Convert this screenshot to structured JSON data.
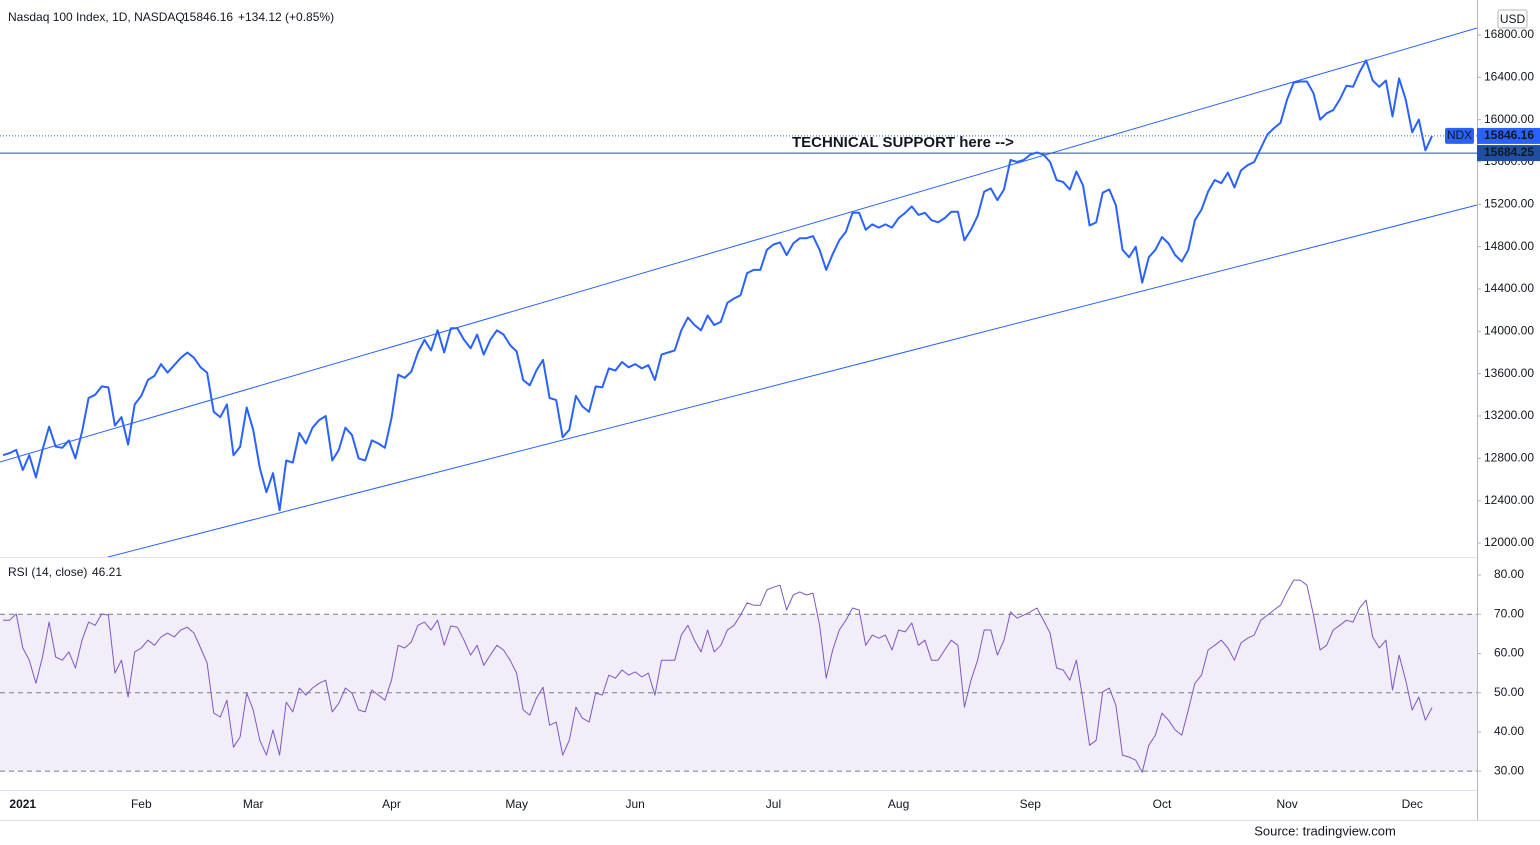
{
  "chart_data": {
    "type": "line",
    "currency": "USD",
    "source": "Source: tradingview.com",
    "annotation": "TECHNICAL SUPPORT here -->",
    "support_level": 15684.25,
    "categories": [
      null,
      null,
      null,
      "2021",
      null,
      null,
      null,
      null,
      null,
      null,
      null,
      null,
      null,
      null,
      null,
      null,
      null,
      null,
      null,
      null,
      null,
      "Feb",
      null,
      null,
      null,
      null,
      null,
      null,
      null,
      null,
      null,
      null,
      null,
      null,
      null,
      null,
      null,
      null,
      "Mar",
      null,
      null,
      null,
      null,
      null,
      null,
      null,
      null,
      null,
      null,
      null,
      null,
      null,
      null,
      null,
      null,
      null,
      null,
      null,
      null,
      "Apr",
      null,
      null,
      null,
      null,
      null,
      null,
      null,
      null,
      null,
      null,
      null,
      null,
      null,
      null,
      null,
      null,
      null,
      null,
      "May",
      null,
      null,
      null,
      null,
      null,
      null,
      null,
      null,
      null,
      null,
      null,
      null,
      null,
      null,
      null,
      null,
      null,
      "Jun",
      null,
      null,
      null,
      null,
      null,
      null,
      null,
      null,
      null,
      null,
      null,
      null,
      null,
      null,
      null,
      null,
      null,
      null,
      null,
      null,
      "Jul",
      null,
      null,
      null,
      null,
      null,
      null,
      null,
      null,
      null,
      null,
      null,
      null,
      null,
      null,
      null,
      null,
      null,
      null,
      "Aug",
      null,
      null,
      null,
      null,
      null,
      null,
      null,
      null,
      null,
      null,
      null,
      null,
      null,
      null,
      null,
      null,
      null,
      null,
      null,
      "Sep",
      null,
      null,
      null,
      null,
      null,
      null,
      null,
      null,
      null,
      null,
      null,
      null,
      null,
      null,
      null,
      null,
      null,
      null,
      null,
      "Oct",
      null,
      null,
      null,
      null,
      null,
      null,
      null,
      null,
      null,
      null,
      null,
      null,
      null,
      null,
      null,
      null,
      null,
      null,
      "Nov",
      null,
      null,
      null,
      null,
      null,
      null,
      null,
      null,
      null,
      null,
      null,
      null,
      null,
      null,
      null,
      null,
      null,
      null,
      "Dec",
      null,
      null,
      null
    ],
    "series": [
      {
        "name": "Nasdaq 100 Index, 1D, NASDAQ",
        "symbol": "NDX",
        "change": "+134.12 (+0.85%)",
        "color": "#2962ff",
        "axis": "y",
        "values": [
          12830,
          12850,
          12880,
          12690,
          12830,
          12620,
          12880,
          13100,
          12910,
          12900,
          12970,
          12800,
          13050,
          13370,
          13400,
          13480,
          13470,
          13110,
          13190,
          12930,
          13310,
          13390,
          13540,
          13580,
          13690,
          13610,
          13680,
          13750,
          13800,
          13750,
          13660,
          13610,
          13240,
          13190,
          13310,
          12830,
          12910,
          13280,
          13070,
          12710,
          12480,
          12660,
          12310,
          12780,
          12760,
          13040,
          12940,
          13090,
          13160,
          13200,
          12780,
          12880,
          13090,
          13020,
          12800,
          12780,
          12970,
          12940,
          12900,
          13180,
          13590,
          13560,
          13620,
          13800,
          13920,
          13820,
          14010,
          13800,
          14030,
          14030,
          13920,
          13840,
          13970,
          13780,
          13920,
          14010,
          13970,
          13870,
          13810,
          13540,
          13490,
          13630,
          13730,
          13370,
          13350,
          13000,
          13070,
          13390,
          13290,
          13240,
          13480,
          13470,
          13650,
          13630,
          13710,
          13660,
          13690,
          13650,
          13680,
          13540,
          13780,
          13800,
          13820,
          14010,
          14130,
          14060,
          14010,
          14150,
          14060,
          14090,
          14270,
          14310,
          14340,
          14550,
          14580,
          14580,
          14770,
          14820,
          14840,
          14720,
          14830,
          14880,
          14880,
          14900,
          14770,
          14580,
          14730,
          14860,
          14940,
          15120,
          15120,
          14960,
          15010,
          14980,
          15010,
          14980,
          15070,
          15120,
          15180,
          15100,
          15120,
          15050,
          15030,
          15070,
          15130,
          15130,
          14860,
          14960,
          15090,
          15320,
          15350,
          15240,
          15340,
          15620,
          15600,
          15620,
          15670,
          15690,
          15670,
          15600,
          15430,
          15410,
          15340,
          15510,
          15380,
          15000,
          15030,
          15310,
          15340,
          15190,
          14770,
          14700,
          14800,
          14460,
          14700,
          14770,
          14890,
          14830,
          14720,
          14660,
          14770,
          15050,
          15150,
          15320,
          15430,
          15400,
          15500,
          15360,
          15520,
          15570,
          15600,
          15730,
          15860,
          15920,
          15970,
          16190,
          16350,
          16360,
          16360,
          16250,
          16000,
          16060,
          16090,
          16190,
          16320,
          16310,
          16450,
          16560,
          16370,
          16310,
          16370,
          16030,
          16390,
          16190,
          15880,
          16000,
          15710,
          15846.16
        ]
      },
      {
        "name": "RSI (14, close)",
        "color": "#7e57c2",
        "axis": "y2",
        "values": [
          68.5,
          68.5,
          70.1,
          61.4,
          58.3,
          52.4,
          59.1,
          68.0,
          59.1,
          58.3,
          60.4,
          56.3,
          63.4,
          68.0,
          67.2,
          70.1,
          69.8,
          55.0,
          58.3,
          48.9,
          60.4,
          61.4,
          63.4,
          62.1,
          64.2,
          65.2,
          64.2,
          66.0,
          66.7,
          65.2,
          61.4,
          57.6,
          44.8,
          43.8,
          48.1,
          36.1,
          38.7,
          49.9,
          45.6,
          37.9,
          34.1,
          40.5,
          34.1,
          47.6,
          45.1,
          51.2,
          49.4,
          51.2,
          52.4,
          53.2,
          45.1,
          47.3,
          51.2,
          49.9,
          45.6,
          45.1,
          50.7,
          49.4,
          48.1,
          53.2,
          62.1,
          61.4,
          62.9,
          67.2,
          68.0,
          66.0,
          68.5,
          62.1,
          67.0,
          66.7,
          63.4,
          59.6,
          62.1,
          57.0,
          59.6,
          62.1,
          60.9,
          58.3,
          55.0,
          45.6,
          44.3,
          48.6,
          51.4,
          41.7,
          42.5,
          34.1,
          37.9,
          46.3,
          43.5,
          42.5,
          49.9,
          49.4,
          54.5,
          53.7,
          55.8,
          54.5,
          55.3,
          54.0,
          55.0,
          49.4,
          58.3,
          58.3,
          58.3,
          64.7,
          67.2,
          63.4,
          60.4,
          66.0,
          60.4,
          62.1,
          66.0,
          67.2,
          69.8,
          72.9,
          72.3,
          72.3,
          76.2,
          76.9,
          77.4,
          71.1,
          74.9,
          75.7,
          74.9,
          75.4,
          67.2,
          53.7,
          60.9,
          66.0,
          68.5,
          71.6,
          71.1,
          62.1,
          64.7,
          63.9,
          64.7,
          60.9,
          66.0,
          65.5,
          67.8,
          62.1,
          63.4,
          58.3,
          58.3,
          60.9,
          63.4,
          62.1,
          46.3,
          53.2,
          58.3,
          66.0,
          66.0,
          59.6,
          63.4,
          70.6,
          69.0,
          69.8,
          70.6,
          71.6,
          68.5,
          65.2,
          56.3,
          55.8,
          53.2,
          58.3,
          48.1,
          36.6,
          37.9,
          50.2,
          51.2,
          46.8,
          34.1,
          33.6,
          32.8,
          29.7,
          36.6,
          39.2,
          44.8,
          43.0,
          40.5,
          39.2,
          45.6,
          52.4,
          54.5,
          60.9,
          62.1,
          63.4,
          61.4,
          58.3,
          62.7,
          63.9,
          64.7,
          68.5,
          69.8,
          71.1,
          72.3,
          75.7,
          78.7,
          78.7,
          77.4,
          69.8,
          60.9,
          62.1,
          66.0,
          67.2,
          68.5,
          68.0,
          71.6,
          73.6,
          64.2,
          61.4,
          63.4,
          50.7,
          59.6,
          53.2,
          45.6,
          48.9,
          43.0,
          46.21
        ]
      }
    ],
    "ylim": [
      11868,
      17102
    ],
    "yticks": [
      {
        "value": 12000,
        "label": "12000.00"
      },
      {
        "value": 12400,
        "label": "12400.00"
      },
      {
        "value": 12800,
        "label": "12800.00"
      },
      {
        "value": 13200,
        "label": "13200.00"
      },
      {
        "value": 13600,
        "label": "13600.00"
      },
      {
        "value": 14000,
        "label": "14000.00"
      },
      {
        "value": 14400,
        "label": "14400.00"
      },
      {
        "value": 14800,
        "label": "14800.00"
      },
      {
        "value": 15200,
        "label": "15200.00"
      },
      {
        "value": 15600,
        "label": "15600.00"
      },
      {
        "value": 16000,
        "label": "16000.00"
      },
      {
        "value": 16400,
        "label": "16400.00"
      },
      {
        "value": 16800,
        "label": "16800.00"
      }
    ],
    "y2lim": [
      25.2,
      84.6
    ],
    "y2ticks": [
      {
        "value": 30,
        "label": "30.00"
      },
      {
        "value": 40,
        "label": "40.00"
      },
      {
        "value": 50,
        "label": "50.00"
      },
      {
        "value": 60,
        "label": "60.00"
      },
      {
        "value": 70,
        "label": "70.00"
      },
      {
        "value": 80,
        "label": "80.00"
      }
    ],
    "y2_levels": [
      30,
      50,
      70
    ],
    "grid": false
  }
}
